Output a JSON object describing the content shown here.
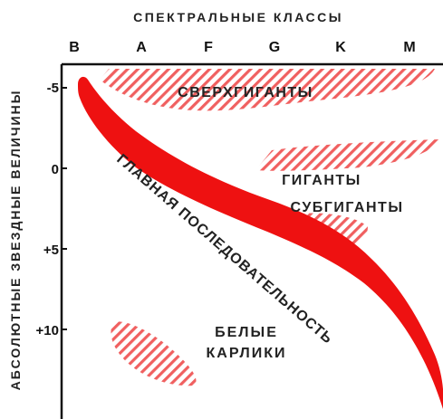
{
  "diagram": {
    "title": "СПЕКТРАЛЬНЫЕ КЛАССЫ",
    "y_title": "АБСОЛЮТНЫЕ ЗВЕЗДНЫЕ ВЕЛИЧИНЫ",
    "spectral_classes": [
      "B",
      "A",
      "F",
      "G",
      "K",
      "M"
    ],
    "magnitude_ticks": [
      "-5",
      "0",
      "+5",
      "+10"
    ],
    "regions": {
      "supergiants": "СВЕРХГИГАНТЫ",
      "giants": "ГИГАНТЫ",
      "subgiants": "СУБГИГАНТЫ",
      "main_sequence": "ГЛАВНАЯ ПОСЛЕДОВАТЕЛЬНОСТЬ",
      "white_dwarfs_line1": "БЕЛЫЕ",
      "white_dwarfs_line2": "КАРЛИКИ"
    },
    "colors": {
      "main_sequence": "#ee1111",
      "hatch": "#f06060",
      "axis": "#111111",
      "text": "#222222"
    }
  }
}
